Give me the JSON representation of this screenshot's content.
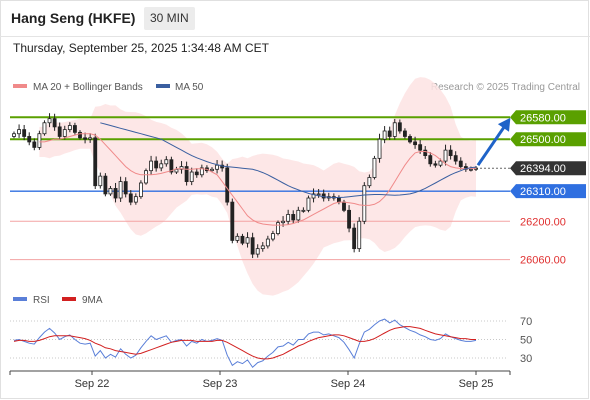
{
  "header": {
    "title": "Hang Seng (HKFE)",
    "timeframe": "30 MIN"
  },
  "datetime": "Thursday, September 25, 2025 1:34:48 AM CET",
  "legend": {
    "ma20": "MA 20 + Bollinger Bands",
    "ma50": "MA 50",
    "ma20_color": "#f08a8a",
    "ma50_color": "#3a5fa0"
  },
  "credit": "Research © 2025 Trading Central",
  "colors": {
    "green_level": "#5aa000",
    "blue_level": "#2f6fe0",
    "red_level": "#f3a3a3",
    "current_price": "#333333",
    "band_fill": "#fde3e3",
    "rsi": "#5a7fd8",
    "rsi_ma": "#d22020"
  },
  "chart_data": [
    {
      "type": "candlestick",
      "x_labels": [
        "Sep 22",
        "Sep 23",
        "Sep 24",
        "Sep 25"
      ],
      "ylim": [
        26000,
        26720
      ],
      "levels": [
        {
          "value": 26580,
          "label": "26580.00",
          "kind": "resistance"
        },
        {
          "value": 26500,
          "label": "26500.00",
          "kind": "resistance"
        },
        {
          "value": 26394,
          "label": "26394.00",
          "kind": "current"
        },
        {
          "value": 26310,
          "label": "26310.00",
          "kind": "pivot"
        },
        {
          "value": 26200,
          "label": "26200.00",
          "kind": "support"
        },
        {
          "value": 26060,
          "label": "26060.00",
          "kind": "support"
        }
      ],
      "close": [
        26520,
        26535,
        26510,
        26490,
        26470,
        26520,
        26560,
        26575,
        26545,
        26510,
        26535,
        26550,
        26525,
        26505,
        26500,
        26505,
        26330,
        26365,
        26300,
        26320,
        26285,
        26345,
        26300,
        26270,
        26290,
        26340,
        26385,
        26420,
        26395,
        26410,
        26425,
        26380,
        26390,
        26400,
        26345,
        26380,
        26370,
        26395,
        26385,
        26390,
        26405,
        26395,
        26270,
        26130,
        26145,
        26120,
        26140,
        26080,
        26100,
        26110,
        26135,
        26155,
        26195,
        26200,
        26225,
        26205,
        26240,
        26240,
        26285,
        26300,
        26300,
        26285,
        26290,
        26285,
        26270,
        26240,
        26175,
        26100,
        26200,
        26330,
        26360,
        26430,
        26500,
        26530,
        26510,
        26560,
        26530,
        26510,
        26490,
        26480,
        26460,
        26440,
        26410,
        26405,
        26420,
        26460,
        26440,
        26420,
        26400,
        26390,
        26390,
        26394
      ],
      "ma20": [
        26490,
        26490,
        26495,
        26500,
        26500,
        26505,
        26510,
        26515,
        26520,
        26520,
        26520,
        26515,
        26500,
        26480,
        26460,
        26440,
        26420,
        26400,
        26385,
        26375,
        26370,
        26370,
        26370,
        26372,
        26375,
        26380,
        26385,
        26392,
        26392,
        26390,
        26390,
        26392,
        26392,
        26390,
        26380,
        26370,
        26345,
        26320,
        26295,
        26270,
        26245,
        26220,
        26205,
        26195,
        26190,
        26188,
        26186,
        26186,
        26186,
        26188,
        26192,
        26198,
        26205,
        26215,
        26225,
        26235,
        26245,
        26255,
        26265,
        26270,
        26270,
        26268,
        26265,
        26260,
        26258,
        26258,
        26262,
        26272,
        26290,
        26315,
        26345,
        26375,
        26405,
        26430,
        26450,
        26455,
        26455,
        26450,
        26440,
        26425,
        26410,
        26400,
        26395,
        26393,
        26392,
        26393,
        26394
      ],
      "ma50": [
        26560,
        26555,
        26550,
        26545,
        26540,
        26535,
        26530,
        26525,
        26520,
        26515,
        26510,
        26505,
        26500,
        26490,
        26480,
        26470,
        26460,
        26450,
        26440,
        26432,
        26425,
        26418,
        26412,
        26407,
        26402,
        26400,
        26398,
        26396,
        26394,
        26392,
        26390,
        26385,
        26378,
        26370,
        26360,
        26350,
        26340,
        26330,
        26322,
        26315,
        26308,
        26302,
        26297,
        26293,
        26290,
        26288,
        26287,
        26287,
        26288,
        26290,
        26292,
        26294,
        26296,
        26297,
        26298,
        26298,
        26297,
        26296,
        26295,
        26296,
        26298,
        26300,
        26305,
        26312,
        26320,
        26330,
        26340,
        26350,
        26360,
        26370,
        26378,
        26385,
        26392,
        26396,
        26398
      ],
      "rsi_levels": [
        70,
        50,
        30
      ],
      "rsi_label": "RSI",
      "rsi_ma_label": "9MA",
      "rsi": [
        49,
        50,
        48,
        46,
        45,
        52,
        58,
        62,
        57,
        50,
        53,
        55,
        50,
        46,
        45,
        46,
        32,
        38,
        30,
        34,
        31,
        40,
        34,
        30,
        33,
        41,
        48,
        54,
        50,
        52,
        54,
        47,
        49,
        50,
        43,
        48,
        46,
        50,
        48,
        49,
        51,
        49,
        33,
        22,
        26,
        24,
        28,
        20,
        25,
        27,
        32,
        36,
        42,
        43,
        47,
        44,
        50,
        50,
        56,
        58,
        58,
        55,
        56,
        54,
        52,
        47,
        39,
        30,
        45,
        58,
        61,
        66,
        70,
        72,
        68,
        71,
        66,
        63,
        60,
        58,
        55,
        53,
        50,
        49,
        51,
        56,
        53,
        51,
        49,
        48,
        48,
        49
      ],
      "rsi_ma": [
        48,
        49,
        49,
        48,
        48,
        49,
        51,
        53,
        54,
        54,
        54,
        54,
        53,
        52,
        51,
        49,
        46,
        44,
        41,
        40,
        38,
        37,
        36,
        35,
        34,
        35,
        37,
        39,
        41,
        43,
        45,
        47,
        48,
        49,
        49,
        49,
        48,
        48,
        48,
        48,
        49,
        49,
        47,
        44,
        41,
        38,
        35,
        32,
        30,
        29,
        29,
        30,
        32,
        34,
        37,
        40,
        43,
        45,
        48,
        50,
        52,
        53,
        54,
        55,
        55,
        54,
        52,
        50,
        48,
        48,
        49,
        51,
        54,
        57,
        60,
        62,
        63,
        64,
        64,
        63,
        62,
        60,
        58,
        56,
        55,
        54,
        53,
        52,
        51,
        51,
        50,
        50
      ]
    }
  ]
}
